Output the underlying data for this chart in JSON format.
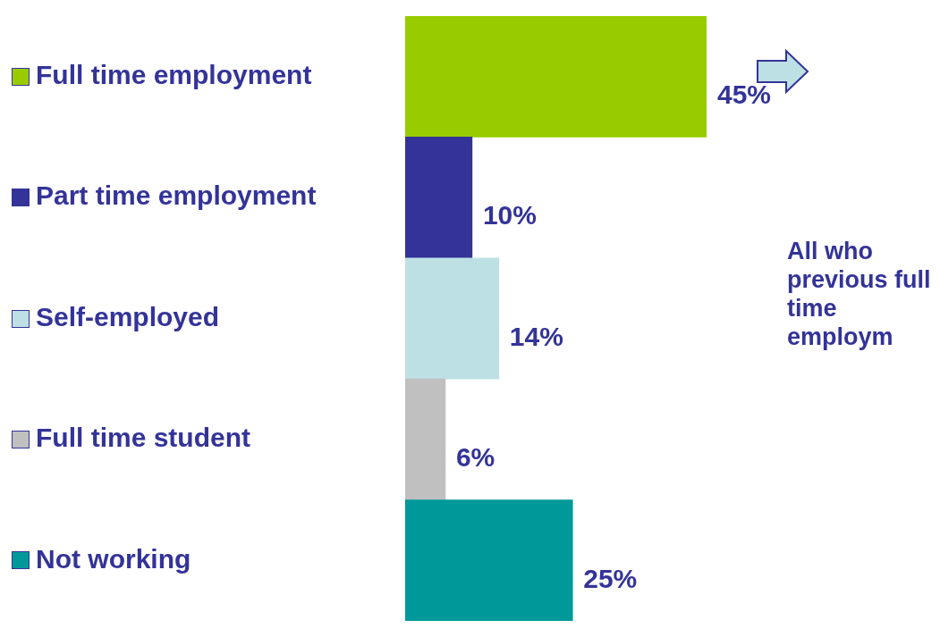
{
  "chart_data": {
    "type": "bar",
    "orientation": "horizontal",
    "categories": [
      "Full time employment",
      "Part time employment",
      "Self-employed",
      "Full time student",
      "Not working"
    ],
    "values": [
      45,
      10,
      14,
      6,
      25
    ],
    "colors": [
      "#99cc00",
      "#333399",
      "#bde0e4",
      "#c0c0c0",
      "#009999"
    ],
    "value_labels": [
      "45%",
      "10%",
      "14%",
      "6%",
      "25%"
    ],
    "annotations": [
      "All who previous full time employm"
    ],
    "tick_labels": "y"
  }
}
